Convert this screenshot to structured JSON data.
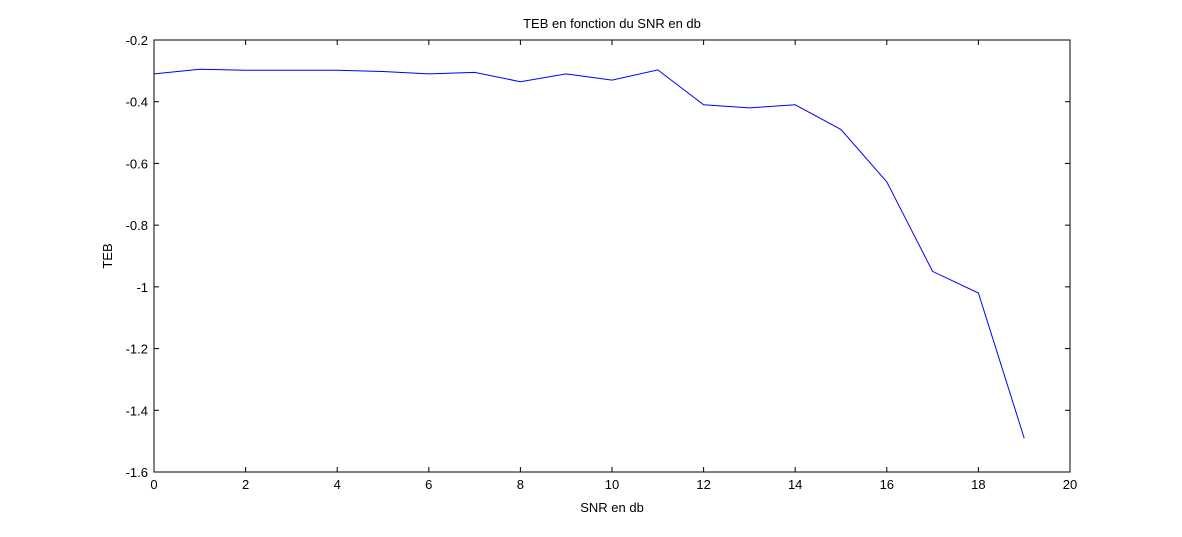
{
  "chart_data": {
    "type": "line",
    "title": "TEB en fonction du SNR en db",
    "xlabel": "SNR en db",
    "ylabel": "TEB",
    "xlim": [
      0,
      20
    ],
    "ylim": [
      -1.6,
      -0.2
    ],
    "xticks": [
      0,
      2,
      4,
      6,
      8,
      10,
      12,
      14,
      16,
      18,
      20
    ],
    "yticks": [
      -0.2,
      -0.4,
      -0.6,
      -0.8,
      -1,
      -1.2,
      -1.4,
      -1.6
    ],
    "xtick_labels": [
      "0",
      "2",
      "4",
      "6",
      "8",
      "10",
      "12",
      "14",
      "16",
      "18",
      "20"
    ],
    "ytick_labels": [
      "-0.2",
      "-0.4",
      "-0.6",
      "-0.8",
      "-1",
      "-1.2",
      "-1.4",
      "-1.6"
    ],
    "grid": false,
    "line_color": "#0000ff",
    "series": [
      {
        "x": [
          0,
          1,
          2,
          3,
          4,
          5,
          6,
          7,
          8,
          9,
          10,
          11,
          12,
          13,
          14,
          15,
          16,
          17,
          18,
          19
        ],
        "values": [
          -0.31,
          -0.295,
          -0.298,
          -0.298,
          -0.298,
          -0.302,
          -0.31,
          -0.305,
          -0.335,
          -0.31,
          -0.33,
          -0.297,
          -0.41,
          -0.42,
          -0.41,
          -0.49,
          -0.66,
          -0.95,
          -1.02,
          -1.49
        ]
      }
    ]
  }
}
